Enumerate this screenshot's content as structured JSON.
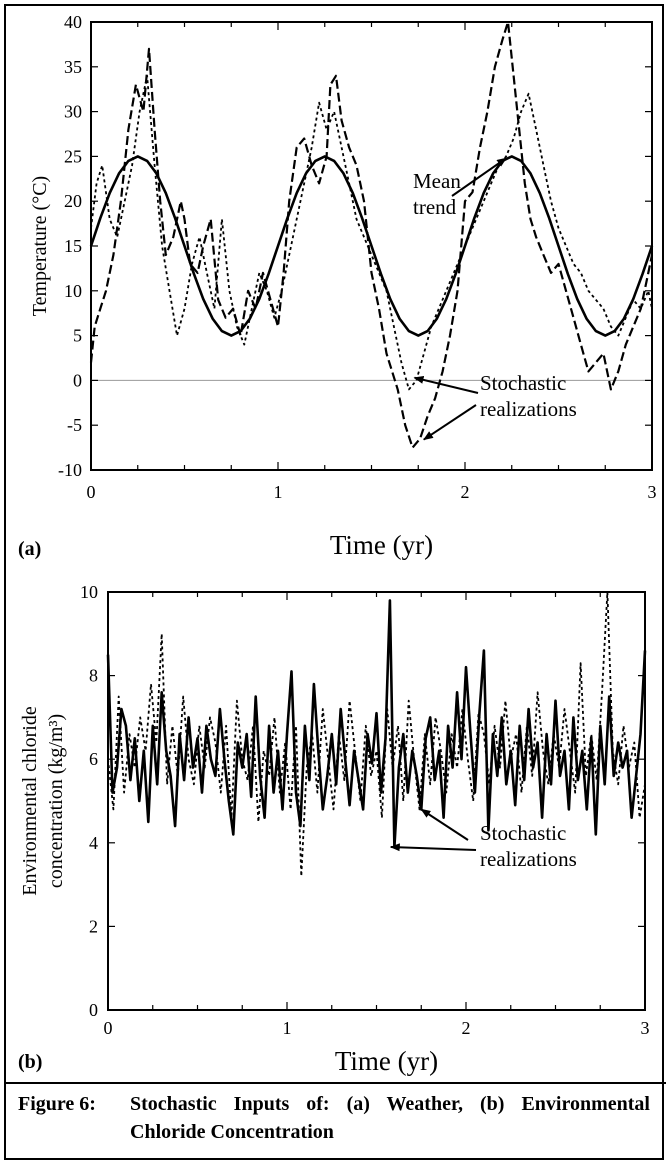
{
  "caption": {
    "prefix": "Figure 6:",
    "text": "Stochastic Inputs of: (a) Weather, (b) Environmental Chloride Concentration"
  },
  "chart_data": [
    {
      "panel_label": "(a)",
      "type": "line",
      "xlabel": "Time (yr)",
      "ylabel": "Temperature (°C)",
      "xlim": [
        0,
        3
      ],
      "ylim": [
        -10,
        40
      ],
      "xticks": [
        0,
        1,
        2,
        3
      ],
      "yticks": [
        -10,
        -5,
        0,
        5,
        10,
        15,
        20,
        25,
        30,
        35,
        40
      ],
      "zero_reference_line": 0,
      "grid": false,
      "annotations": [
        {
          "text": [
            "Mean",
            "trend"
          ],
          "points_to": [
            2.22,
            24.8
          ]
        },
        {
          "text": [
            "Stochastic",
            "realizations"
          ],
          "points_to": [
            [
              1.73,
              0.3
            ],
            [
              1.78,
              -6.6
            ]
          ]
        }
      ],
      "series": [
        {
          "style": "solid",
          "x": [
            0,
            0.05,
            0.1,
            0.15,
            0.2,
            0.25,
            0.3,
            0.35,
            0.4,
            0.45,
            0.5,
            0.55,
            0.6,
            0.65,
            0.7,
            0.75,
            0.8,
            0.85,
            0.9,
            0.95,
            1,
            1.05,
            1.1,
            1.15,
            1.2,
            1.25,
            1.3,
            1.35,
            1.4,
            1.45,
            1.5,
            1.55,
            1.6,
            1.65,
            1.7,
            1.75,
            1.8,
            1.85,
            1.9,
            1.95,
            2,
            2.05,
            2.1,
            2.15,
            2.2,
            2.25,
            2.3,
            2.35,
            2.4,
            2.45,
            2.5,
            2.55,
            2.6,
            2.65,
            2.7,
            2.75,
            2.8,
            2.85,
            2.9,
            2.95,
            3
          ],
          "values": [
            15,
            18.1,
            20.9,
            23.1,
            24.5,
            25,
            24.5,
            23.1,
            20.9,
            18.1,
            15,
            11.9,
            9.1,
            6.9,
            5.5,
            5,
            5.5,
            6.9,
            9.1,
            11.9,
            15,
            18.1,
            20.9,
            23.1,
            24.5,
            25,
            24.5,
            23.1,
            20.9,
            18.1,
            15,
            11.9,
            9.1,
            6.9,
            5.5,
            5,
            5.5,
            6.9,
            9.1,
            11.9,
            15,
            18.1,
            20.9,
            23.1,
            24.5,
            25,
            24.5,
            23.1,
            20.9,
            18.1,
            15,
            11.9,
            9.1,
            6.9,
            5.5,
            5,
            5.5,
            6.9,
            9.1,
            11.9,
            15
          ]
        },
        {
          "style": "dashed",
          "x": [
            0,
            0.02,
            0.05,
            0.08,
            0.12,
            0.16,
            0.2,
            0.24,
            0.28,
            0.31,
            0.34,
            0.37,
            0.4,
            0.44,
            0.48,
            0.5,
            0.53,
            0.57,
            0.6,
            0.64,
            0.68,
            0.72,
            0.76,
            0.8,
            0.84,
            0.88,
            0.92,
            0.96,
            1,
            1.03,
            1.06,
            1.1,
            1.14,
            1.18,
            1.22,
            1.26,
            1.28,
            1.31,
            1.34,
            1.38,
            1.42,
            1.46,
            1.5,
            1.54,
            1.58,
            1.61,
            1.64,
            1.68,
            1.72,
            1.76,
            1.8,
            1.84,
            1.88,
            1.92,
            1.96,
            2,
            2.04,
            2.08,
            2.12,
            2.16,
            2.2,
            2.23,
            2.26,
            2.29,
            2.32,
            2.35,
            2.38,
            2.42,
            2.46,
            2.5,
            2.54,
            2.58,
            2.62,
            2.66,
            2.7,
            2.74,
            2.78,
            2.82,
            2.86,
            2.9,
            2.94,
            2.98,
            3
          ],
          "values": [
            2,
            6,
            8,
            10,
            14,
            20,
            28,
            33,
            30,
            37,
            28,
            20,
            14,
            16,
            20,
            18,
            13,
            12,
            15,
            18,
            9,
            7,
            8,
            5,
            10,
            8,
            12,
            9,
            6,
            12,
            20,
            26,
            27,
            24,
            22,
            25,
            33,
            34,
            29,
            26,
            24,
            20,
            12,
            8,
            3,
            1,
            -1,
            -5,
            -7.5,
            -6.5,
            -4,
            -2,
            1,
            5,
            10,
            20,
            21,
            26,
            30,
            35,
            38,
            40,
            34,
            28,
            22,
            18,
            16,
            14,
            12,
            13,
            10,
            7,
            4,
            1,
            2,
            3,
            -1,
            1,
            4,
            6,
            8,
            12,
            14
          ]
        },
        {
          "style": "dotted",
          "x": [
            0,
            0.03,
            0.06,
            0.1,
            0.14,
            0.18,
            0.22,
            0.26,
            0.3,
            0.34,
            0.38,
            0.42,
            0.46,
            0.5,
            0.54,
            0.58,
            0.62,
            0.66,
            0.7,
            0.74,
            0.78,
            0.82,
            0.86,
            0.9,
            0.94,
            0.98,
            1.02,
            1.06,
            1.1,
            1.14,
            1.18,
            1.22,
            1.26,
            1.3,
            1.34,
            1.38,
            1.42,
            1.46,
            1.5,
            1.54,
            1.58,
            1.62,
            1.66,
            1.7,
            1.74,
            1.78,
            1.82,
            1.86,
            1.9,
            1.94,
            1.98,
            2.02,
            2.06,
            2.1,
            2.14,
            2.18,
            2.22,
            2.26,
            2.3,
            2.34,
            2.38,
            2.42,
            2.46,
            2.5,
            2.54,
            2.58,
            2.62,
            2.66,
            2.7,
            2.74,
            2.78,
            2.82,
            2.86,
            2.9,
            2.94,
            2.98,
            3
          ],
          "values": [
            17,
            22,
            24,
            18,
            16,
            20,
            24,
            30,
            34,
            24,
            15,
            10,
            5,
            8,
            13,
            16,
            12,
            8,
            18,
            10,
            6,
            4,
            8,
            12,
            10,
            7,
            10,
            14,
            18,
            22,
            26,
            31,
            28,
            30,
            26,
            22,
            18,
            16,
            14,
            12,
            10,
            6,
            2,
            -1,
            0,
            3,
            6,
            8,
            10,
            12,
            14,
            16,
            18,
            20,
            22,
            24,
            25,
            27,
            30,
            32,
            28,
            24,
            20,
            17,
            15,
            13,
            12,
            10,
            9,
            8,
            6,
            5,
            7,
            9,
            8,
            10,
            8
          ]
        }
      ]
    },
    {
      "panel_label": "(b)",
      "type": "line",
      "xlabel": "Time (yr)",
      "ylabel": [
        "Environmental chloride",
        "concentration (kg/m³)"
      ],
      "xlim": [
        0,
        3
      ],
      "ylim": [
        0,
        10
      ],
      "xticks": [
        0,
        1,
        2,
        3
      ],
      "yticks": [
        0,
        2,
        4,
        6,
        8,
        10
      ],
      "grid": false,
      "annotations": [
        {
          "text": [
            "Stochastic",
            "realizations"
          ],
          "points_to": [
            [
              1.58,
              3.9
            ],
            [
              1.75,
              4.8
            ]
          ]
        }
      ],
      "series": [
        {
          "style": "solid",
          "x": [
            0,
            0.025,
            0.05,
            0.075,
            0.1,
            0.125,
            0.15,
            0.175,
            0.2,
            0.225,
            0.25,
            0.275,
            0.3,
            0.325,
            0.35,
            0.375,
            0.4,
            0.425,
            0.45,
            0.475,
            0.5,
            0.525,
            0.55,
            0.575,
            0.6,
            0.625,
            0.65,
            0.675,
            0.7,
            0.725,
            0.75,
            0.775,
            0.8,
            0.825,
            0.85,
            0.875,
            0.9,
            0.925,
            0.95,
            0.975,
            1,
            1.025,
            1.05,
            1.075,
            1.1,
            1.125,
            1.15,
            1.175,
            1.2,
            1.225,
            1.25,
            1.275,
            1.3,
            1.325,
            1.35,
            1.375,
            1.4,
            1.425,
            1.45,
            1.475,
            1.5,
            1.525,
            1.55,
            1.575,
            1.6,
            1.625,
            1.65,
            1.675,
            1.7,
            1.725,
            1.75,
            1.775,
            1.8,
            1.825,
            1.85,
            1.875,
            1.9,
            1.925,
            1.95,
            1.975,
            2,
            2.025,
            2.05,
            2.075,
            2.1,
            2.125,
            2.15,
            2.175,
            2.2,
            2.225,
            2.25,
            2.275,
            2.3,
            2.325,
            2.35,
            2.375,
            2.4,
            2.425,
            2.45,
            2.475,
            2.5,
            2.525,
            2.55,
            2.575,
            2.6,
            2.625,
            2.65,
            2.675,
            2.7,
            2.725,
            2.75,
            2.775,
            2.8,
            2.825,
            2.85,
            2.875,
            2.9,
            2.925,
            2.95,
            2.975,
            3
          ],
          "values": [
            8.5,
            5.2,
            5.8,
            7.2,
            6.8,
            5.5,
            6.5,
            5,
            6.2,
            4.5,
            6.8,
            5.4,
            7.6,
            6.2,
            5.6,
            4.4,
            6.6,
            5.5,
            7,
            5.8,
            6.5,
            5.2,
            6.8,
            6,
            5.6,
            7.2,
            6,
            5,
            4.2,
            6.4,
            5.8,
            6.6,
            5.1,
            7.5,
            5.6,
            4.6,
            6.8,
            5.2,
            6.2,
            4.8,
            6.6,
            8.1,
            5.2,
            4.4,
            6.8,
            5.5,
            7.8,
            6.2,
            4.8,
            5.6,
            6.6,
            5.4,
            7.2,
            6,
            4.9,
            6.2,
            5.5,
            4.8,
            6.6,
            5.9,
            7.1,
            5.2,
            6.5,
            9.8,
            3.9,
            5.8,
            6.6,
            5.2,
            6.2,
            5.6,
            4.8,
            6.5,
            7,
            5.5,
            6.2,
            4.6,
            6.8,
            5.8,
            7.6,
            6,
            8.2,
            6.6,
            5.2,
            7.1,
            8.6,
            4.3,
            6.6,
            5.6,
            7,
            5.4,
            6.2,
            4.9,
            6.8,
            5.5,
            7.2,
            5.8,
            6.4,
            4.6,
            6.6,
            5.4,
            7.4,
            5.6,
            6.2,
            4.8,
            7,
            5.5,
            6.2,
            4.8,
            6.5,
            4.2,
            6.8,
            5.4,
            7.5,
            5.6,
            6.4,
            5.8,
            6.2,
            4.6,
            5.6,
            6.6,
            8.6
          ]
        },
        {
          "style": "dotted",
          "x": [
            0,
            0.03,
            0.06,
            0.09,
            0.12,
            0.15,
            0.18,
            0.21,
            0.24,
            0.27,
            0.3,
            0.33,
            0.36,
            0.39,
            0.42,
            0.45,
            0.48,
            0.51,
            0.54,
            0.57,
            0.6,
            0.63,
            0.66,
            0.69,
            0.72,
            0.75,
            0.78,
            0.81,
            0.84,
            0.87,
            0.9,
            0.93,
            0.96,
            0.99,
            1.02,
            1.05,
            1.08,
            1.11,
            1.14,
            1.17,
            1.2,
            1.23,
            1.26,
            1.29,
            1.32,
            1.35,
            1.38,
            1.41,
            1.44,
            1.47,
            1.5,
            1.53,
            1.56,
            1.59,
            1.62,
            1.65,
            1.68,
            1.71,
            1.74,
            1.77,
            1.8,
            1.83,
            1.86,
            1.89,
            1.92,
            1.95,
            1.98,
            2.01,
            2.04,
            2.07,
            2.1,
            2.13,
            2.16,
            2.19,
            2.22,
            2.25,
            2.28,
            2.31,
            2.34,
            2.37,
            2.4,
            2.43,
            2.46,
            2.49,
            2.52,
            2.55,
            2.58,
            2.61,
            2.64,
            2.67,
            2.7,
            2.73,
            2.76,
            2.79,
            2.82,
            2.85,
            2.88,
            2.91,
            2.94,
            2.97,
            3
          ],
          "values": [
            6,
            4.8,
            7.5,
            5.2,
            6.6,
            5.8,
            7,
            6.2,
            7.8,
            6.4,
            9,
            5.4,
            6.8,
            5.6,
            7.5,
            6,
            5.4,
            6.8,
            5.8,
            7,
            6.4,
            5.2,
            6.8,
            4.6,
            7.4,
            6,
            5.5,
            6.8,
            4.5,
            6.2,
            5.6,
            7,
            5.2,
            6.4,
            4.8,
            6.8,
            3.2,
            5.8,
            6.6,
            5.2,
            7.2,
            6,
            4.8,
            6.6,
            5.5,
            7.4,
            6.2,
            5,
            6.8,
            5.6,
            6.2,
            4.6,
            7.2,
            5.8,
            6.8,
            5,
            7.4,
            6,
            4.8,
            6.6,
            5.4,
            7,
            6.2,
            5.2,
            6.6,
            5.8,
            7.2,
            6,
            5,
            7.1,
            6.6,
            5.4,
            6.8,
            5.8,
            7.4,
            6,
            6.6,
            5.2,
            6.8,
            5.6,
            7.6,
            6.2,
            5.4,
            6.6,
            5.8,
            7.2,
            6.2,
            5.2,
            8.3,
            5.6,
            6.6,
            5.5,
            7.6,
            10,
            6.2,
            5.4,
            6.8,
            5.8,
            6.4,
            4.6,
            5.4
          ]
        }
      ]
    }
  ]
}
